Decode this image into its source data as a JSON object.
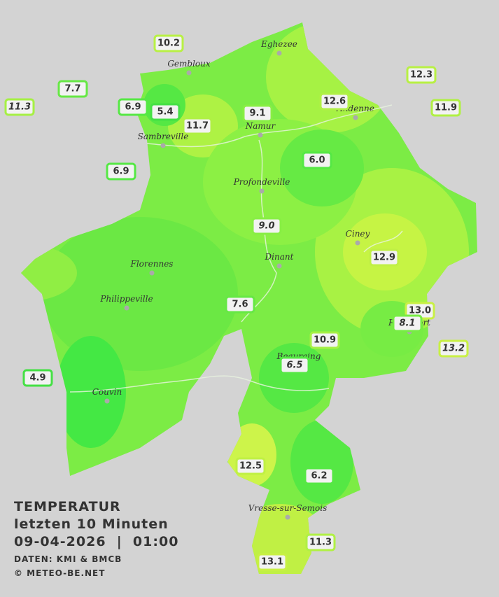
{
  "title": {
    "line1": "TEMPERATUR",
    "line2": "letzten 10 Minuten",
    "line3": "09-04-2026  |  01:00",
    "source": "DATEN: KMI & BMCB",
    "copyright": "© METEO-BE.NET"
  },
  "cities": [
    "Eghezee",
    "Gembloux",
    "Andenne",
    "Namur",
    "Sambreville",
    "Profondeville",
    "Ciney",
    "Dinant",
    "Florennes",
    "Philippeville",
    "Rochefort",
    "Beauraing",
    "Couvin",
    "Vresse-sur-Semois"
  ],
  "stations": [
    "10.2",
    "7.7",
    "11.3",
    "6.9",
    "5.4",
    "11.7",
    "9.1",
    "12.6",
    "12.3",
    "11.9",
    "6.9",
    "6.0",
    "9.0",
    "12.9",
    "7.6",
    "13.0",
    "8.1",
    "10.9",
    "13.2",
    "6.5",
    "4.9",
    "12.5",
    "6.2",
    "11.3",
    "13.1"
  ]
}
